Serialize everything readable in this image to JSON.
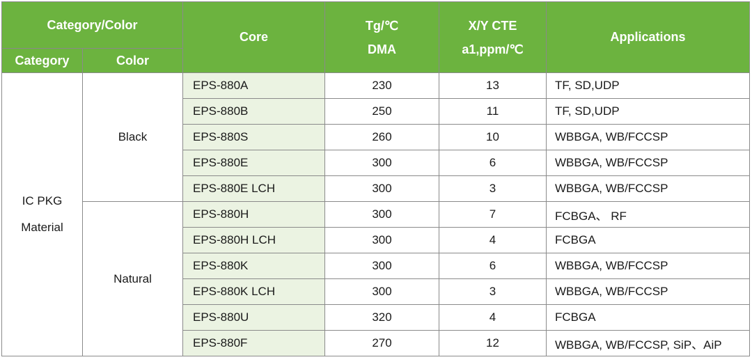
{
  "headers": {
    "category_color": "Category/Color",
    "core": "Core",
    "tg_line1": "Tg/℃",
    "tg_line2": "DMA",
    "cte_line1": "X/Y CTE",
    "cte_line2": "a1,ppm/℃",
    "applications": "Applications",
    "category": "Category",
    "color": "Color"
  },
  "category": {
    "line1": "IC PKG",
    "line2": "Material"
  },
  "colors": {
    "black": "Black",
    "natural": "Natural"
  },
  "rows": [
    {
      "core": "EPS-880A",
      "tg": "230",
      "cte": "13",
      "app": "TF, SD,UDP"
    },
    {
      "core": "EPS-880B",
      "tg": "250",
      "cte": "11",
      "app": "TF, SD,UDP"
    },
    {
      "core": "EPS-880S",
      "tg": "260",
      "cte": "10",
      "app": "WBBGA, WB/FCCSP"
    },
    {
      "core": "EPS-880E",
      "tg": "300",
      "cte": "6",
      "app": "WBBGA, WB/FCCSP"
    },
    {
      "core": "EPS-880E LCH",
      "tg": "300",
      "cte": "3",
      "app": "WBBGA, WB/FCCSP"
    },
    {
      "core": "EPS-880H",
      "tg": "300",
      "cte": "7",
      "app": "FCBGA、 RF"
    },
    {
      "core": "EPS-880H LCH",
      "tg": "300",
      "cte": "4",
      "app": "FCBGA"
    },
    {
      "core": "EPS-880K",
      "tg": "300",
      "cte": "6",
      "app": "WBBGA, WB/FCCSP"
    },
    {
      "core": "EPS-880K LCH",
      "tg": "300",
      "cte": "3",
      "app": "WBBGA, WB/FCCSP"
    },
    {
      "core": "EPS-880U",
      "tg": "320",
      "cte": "4",
      "app": "FCBGA"
    },
    {
      "core": "EPS-880F",
      "tg": "270",
      "cte": "12",
      "app": "WBBGA, WB/FCCSP, SiP、AiP"
    }
  ],
  "colors_hex": {
    "header_green": "#6cb33f",
    "core_column_bg": "#ebf3e2",
    "border": "#8a8a8a"
  }
}
